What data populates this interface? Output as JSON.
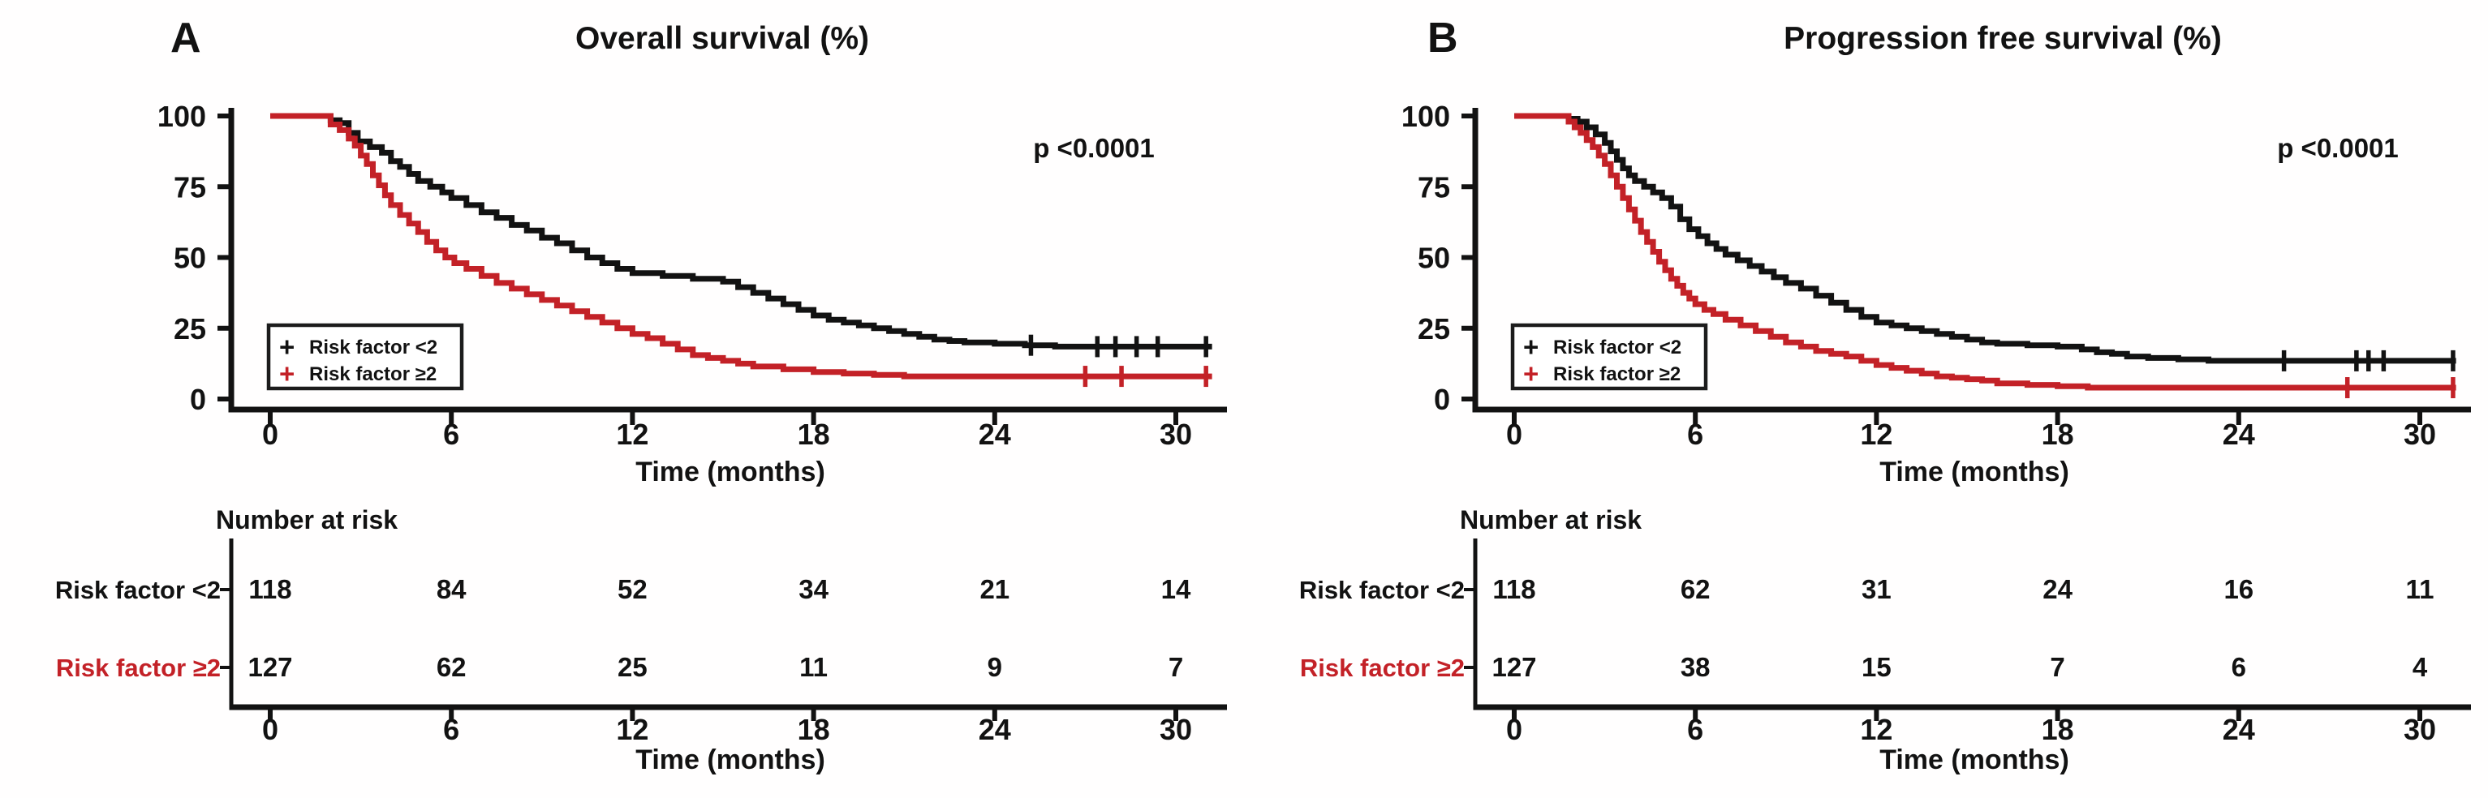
{
  "figure": {
    "background": "#ffffff",
    "axis_color": "#121212",
    "censor_glyph": "+"
  },
  "chart_data": [
    {
      "type": "line",
      "subtype": "kaplan-meier-step",
      "panel_letter": "A",
      "title": "Overall survival (%)",
      "p_value": "p <0.0001",
      "xlabel": "Time (months)",
      "ylabel": "Overall survival (%)",
      "x_ticks": [
        0,
        6,
        12,
        18,
        24,
        30
      ],
      "y_ticks": [
        0,
        25,
        50,
        75,
        100
      ],
      "xlim": [
        0,
        31.5
      ],
      "ylim": [
        0,
        100
      ],
      "grid": false,
      "legend_position": "lower-left",
      "series": [
        {
          "name": "Risk factor <2",
          "color": "#121212",
          "steps": [
            [
              0,
              100
            ],
            [
              1.8,
              100
            ],
            [
              2.0,
              98.5
            ],
            [
              2.3,
              97.5
            ],
            [
              2.6,
              94
            ],
            [
              2.9,
              91
            ],
            [
              3.3,
              89
            ],
            [
              3.7,
              87
            ],
            [
              4.0,
              84
            ],
            [
              4.3,
              82
            ],
            [
              4.6,
              79.5
            ],
            [
              4.9,
              77
            ],
            [
              5.3,
              75
            ],
            [
              5.7,
              73
            ],
            [
              6.0,
              71
            ],
            [
              6.5,
              68.5
            ],
            [
              7.0,
              66
            ],
            [
              7.5,
              64
            ],
            [
              8.0,
              61.5
            ],
            [
              8.5,
              59.5
            ],
            [
              9.0,
              57
            ],
            [
              9.5,
              55
            ],
            [
              10.0,
              52.5
            ],
            [
              10.5,
              50
            ],
            [
              11.0,
              48
            ],
            [
              11.5,
              46
            ],
            [
              12.0,
              44.5
            ],
            [
              13.0,
              43.5
            ],
            [
              14.0,
              42.5
            ],
            [
              15.0,
              41.5
            ],
            [
              15.5,
              39.5
            ],
            [
              16.0,
              37.5
            ],
            [
              16.5,
              35.5
            ],
            [
              17.0,
              33.5
            ],
            [
              17.5,
              31.5
            ],
            [
              18.0,
              29.5
            ],
            [
              18.5,
              28
            ],
            [
              19.0,
              27
            ],
            [
              19.5,
              26
            ],
            [
              20.0,
              25
            ],
            [
              20.5,
              24
            ],
            [
              21.0,
              23
            ],
            [
              21.5,
              22
            ],
            [
              22.0,
              21
            ],
            [
              22.5,
              20.5
            ],
            [
              23.0,
              20
            ],
            [
              24.0,
              19.5
            ],
            [
              25.0,
              19
            ],
            [
              26.0,
              18.5
            ],
            [
              31.2,
              18.5
            ]
          ],
          "censor_times": [
            25.2,
            27.4,
            28.0,
            28.7,
            29.4,
            31.0
          ]
        },
        {
          "name": "Risk factor ≥2",
          "color": "#c32127",
          "steps": [
            [
              0,
              100
            ],
            [
              1.8,
              100
            ],
            [
              2.0,
              97
            ],
            [
              2.3,
              95
            ],
            [
              2.6,
              92
            ],
            [
              2.8,
              89.5
            ],
            [
              3.0,
              86
            ],
            [
              3.2,
              83
            ],
            [
              3.4,
              79
            ],
            [
              3.6,
              75.5
            ],
            [
              3.8,
              72
            ],
            [
              4.0,
              68.5
            ],
            [
              4.3,
              65
            ],
            [
              4.6,
              62
            ],
            [
              4.9,
              59
            ],
            [
              5.2,
              55.5
            ],
            [
              5.5,
              52.5
            ],
            [
              5.8,
              50
            ],
            [
              6.1,
              48
            ],
            [
              6.5,
              46
            ],
            [
              7.0,
              43.5
            ],
            [
              7.5,
              41
            ],
            [
              8.0,
              39
            ],
            [
              8.5,
              37
            ],
            [
              9.0,
              35
            ],
            [
              9.5,
              33
            ],
            [
              10.0,
              31
            ],
            [
              10.5,
              29
            ],
            [
              11.0,
              27
            ],
            [
              11.5,
              25
            ],
            [
              12.0,
              23
            ],
            [
              12.5,
              21.5
            ],
            [
              13.0,
              19.5
            ],
            [
              13.5,
              17.5
            ],
            [
              14.0,
              15.5
            ],
            [
              14.5,
              14.5
            ],
            [
              15.0,
              13.5
            ],
            [
              15.5,
              12.5
            ],
            [
              16.0,
              11.5
            ],
            [
              17.0,
              10.5
            ],
            [
              18.0,
              9.5
            ],
            [
              19.0,
              9
            ],
            [
              20.0,
              8.5
            ],
            [
              21.0,
              8
            ],
            [
              31.2,
              8
            ]
          ],
          "censor_times": [
            27.0,
            28.2,
            31.0
          ]
        }
      ],
      "number_at_risk": {
        "header": "Number at risk",
        "times": [
          0,
          6,
          12,
          18,
          24,
          30
        ],
        "rows": [
          {
            "name": "Risk factor <2",
            "color": "#121212",
            "counts": [
              118,
              84,
              52,
              34,
              21,
              14
            ]
          },
          {
            "name": "Risk factor ≥2",
            "color": "#c32127",
            "counts": [
              127,
              62,
              25,
              11,
              9,
              7
            ]
          }
        ]
      }
    },
    {
      "type": "line",
      "subtype": "kaplan-meier-step",
      "panel_letter": "B",
      "title": "Progression free survival (%)",
      "p_value": "p <0.0001",
      "xlabel": "Time (months)",
      "ylabel": "Progression free survival (%)",
      "x_ticks": [
        0,
        6,
        12,
        18,
        24,
        30
      ],
      "y_ticks": [
        0,
        25,
        50,
        75,
        100
      ],
      "xlim": [
        0,
        31.5
      ],
      "ylim": [
        0,
        100
      ],
      "grid": false,
      "legend_position": "lower-left",
      "series": [
        {
          "name": "Risk factor <2",
          "color": "#121212",
          "steps": [
            [
              0,
              100
            ],
            [
              1.5,
              100
            ],
            [
              1.8,
              99
            ],
            [
              2.1,
              98
            ],
            [
              2.4,
              96
            ],
            [
              2.7,
              93.5
            ],
            [
              3.0,
              90.5
            ],
            [
              3.2,
              87.5
            ],
            [
              3.4,
              84.5
            ],
            [
              3.6,
              81.5
            ],
            [
              3.8,
              79
            ],
            [
              4.0,
              77
            ],
            [
              4.3,
              75
            ],
            [
              4.6,
              73
            ],
            [
              4.9,
              71
            ],
            [
              5.2,
              68
            ],
            [
              5.5,
              63.5
            ],
            [
              5.8,
              60
            ],
            [
              6.1,
              57.5
            ],
            [
              6.4,
              55
            ],
            [
              6.7,
              53
            ],
            [
              7.0,
              51
            ],
            [
              7.4,
              49
            ],
            [
              7.8,
              47
            ],
            [
              8.2,
              45
            ],
            [
              8.6,
              43
            ],
            [
              9.0,
              41
            ],
            [
              9.5,
              39
            ],
            [
              10.0,
              36.5
            ],
            [
              10.5,
              34
            ],
            [
              11.0,
              31.5
            ],
            [
              11.5,
              29
            ],
            [
              12.0,
              27
            ],
            [
              12.5,
              26
            ],
            [
              13.0,
              25
            ],
            [
              13.5,
              24
            ],
            [
              14.0,
              23
            ],
            [
              14.5,
              22
            ],
            [
              15.0,
              21
            ],
            [
              15.5,
              20
            ],
            [
              16.0,
              19.5
            ],
            [
              17.0,
              19
            ],
            [
              18.0,
              18.5
            ],
            [
              18.8,
              17.5
            ],
            [
              19.3,
              16.5
            ],
            [
              19.8,
              16
            ],
            [
              20.3,
              15
            ],
            [
              21.0,
              14.5
            ],
            [
              22.0,
              14
            ],
            [
              23.0,
              13.5
            ],
            [
              31.2,
              13.5
            ]
          ],
          "censor_times": [
            25.5,
            27.9,
            28.3,
            28.8,
            31.1
          ]
        },
        {
          "name": "Risk factor ≥2",
          "color": "#c32127",
          "steps": [
            [
              0,
              100
            ],
            [
              1.5,
              100
            ],
            [
              1.8,
              98
            ],
            [
              2.0,
              96
            ],
            [
              2.2,
              94
            ],
            [
              2.4,
              91.5
            ],
            [
              2.6,
              89
            ],
            [
              2.8,
              86
            ],
            [
              3.0,
              83
            ],
            [
              3.2,
              79
            ],
            [
              3.4,
              75
            ],
            [
              3.6,
              71
            ],
            [
              3.8,
              67
            ],
            [
              4.0,
              63
            ],
            [
              4.2,
              59
            ],
            [
              4.4,
              55.5
            ],
            [
              4.6,
              52
            ],
            [
              4.8,
              48.5
            ],
            [
              5.0,
              45.5
            ],
            [
              5.2,
              42.5
            ],
            [
              5.4,
              40
            ],
            [
              5.6,
              37.5
            ],
            [
              5.8,
              35.5
            ],
            [
              6.0,
              33.5
            ],
            [
              6.3,
              31.5
            ],
            [
              6.6,
              30
            ],
            [
              7.0,
              28
            ],
            [
              7.5,
              26
            ],
            [
              8.0,
              24
            ],
            [
              8.5,
              22
            ],
            [
              9.0,
              20
            ],
            [
              9.5,
              18.5
            ],
            [
              10.0,
              17
            ],
            [
              10.5,
              16
            ],
            [
              11.0,
              15
            ],
            [
              11.5,
              13.5
            ],
            [
              12.0,
              12
            ],
            [
              12.5,
              11
            ],
            [
              13.0,
              10
            ],
            [
              13.5,
              9
            ],
            [
              14.0,
              8
            ],
            [
              14.5,
              7.5
            ],
            [
              15.0,
              7
            ],
            [
              15.5,
              6.5
            ],
            [
              16.0,
              5.5
            ],
            [
              17.0,
              5
            ],
            [
              18.0,
              4.5
            ],
            [
              19.0,
              4
            ],
            [
              31.2,
              4
            ]
          ],
          "censor_times": [
            27.6,
            31.1
          ]
        }
      ],
      "number_at_risk": {
        "header": "Number at risk",
        "times": [
          0,
          6,
          12,
          18,
          24,
          30
        ],
        "rows": [
          {
            "name": "Risk factor <2",
            "color": "#121212",
            "counts": [
              118,
              62,
              31,
              24,
              16,
              11
            ]
          },
          {
            "name": "Risk factor ≥2",
            "color": "#c32127",
            "counts": [
              127,
              38,
              15,
              7,
              6,
              4
            ]
          }
        ]
      }
    }
  ]
}
